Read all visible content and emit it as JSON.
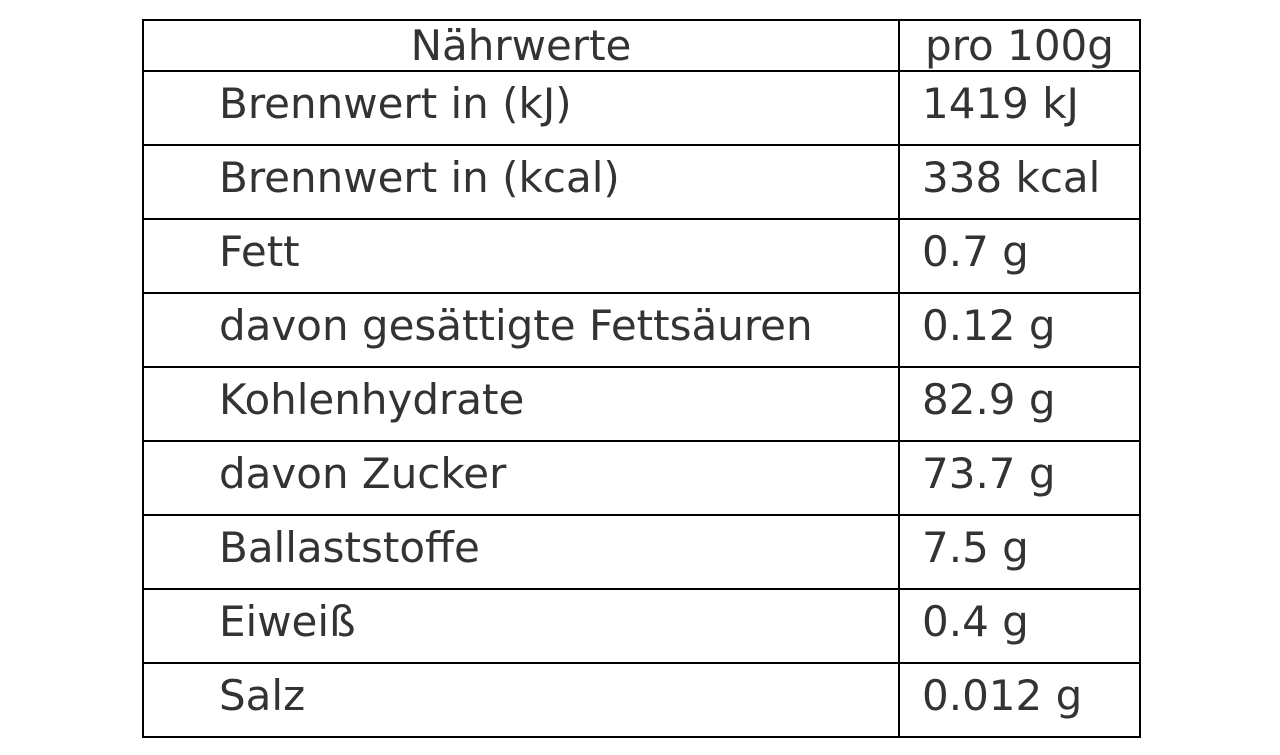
{
  "header": {
    "col1": "Nährwerte",
    "col2": "pro 100g"
  },
  "rows": [
    {
      "name": "Brennwert in (kJ)",
      "value": "1419 kJ"
    },
    {
      "name": "Brennwert in (kcal)",
      "value": "338 kcal"
    },
    {
      "name": "Fett",
      "value": "0.7 g"
    },
    {
      "name": "davon gesättigte Fettsäuren",
      "value": "0.12 g"
    },
    {
      "name": "Kohlenhydrate",
      "value": "82.9 g"
    },
    {
      "name": "davon Zucker",
      "value": "73.7 g"
    },
    {
      "name": "Ballaststoffe",
      "value": "7.5 g"
    },
    {
      "name": "Eiweiß",
      "value": "0.4 g"
    },
    {
      "name": "Salz",
      "value": "0.012 g"
    }
  ]
}
